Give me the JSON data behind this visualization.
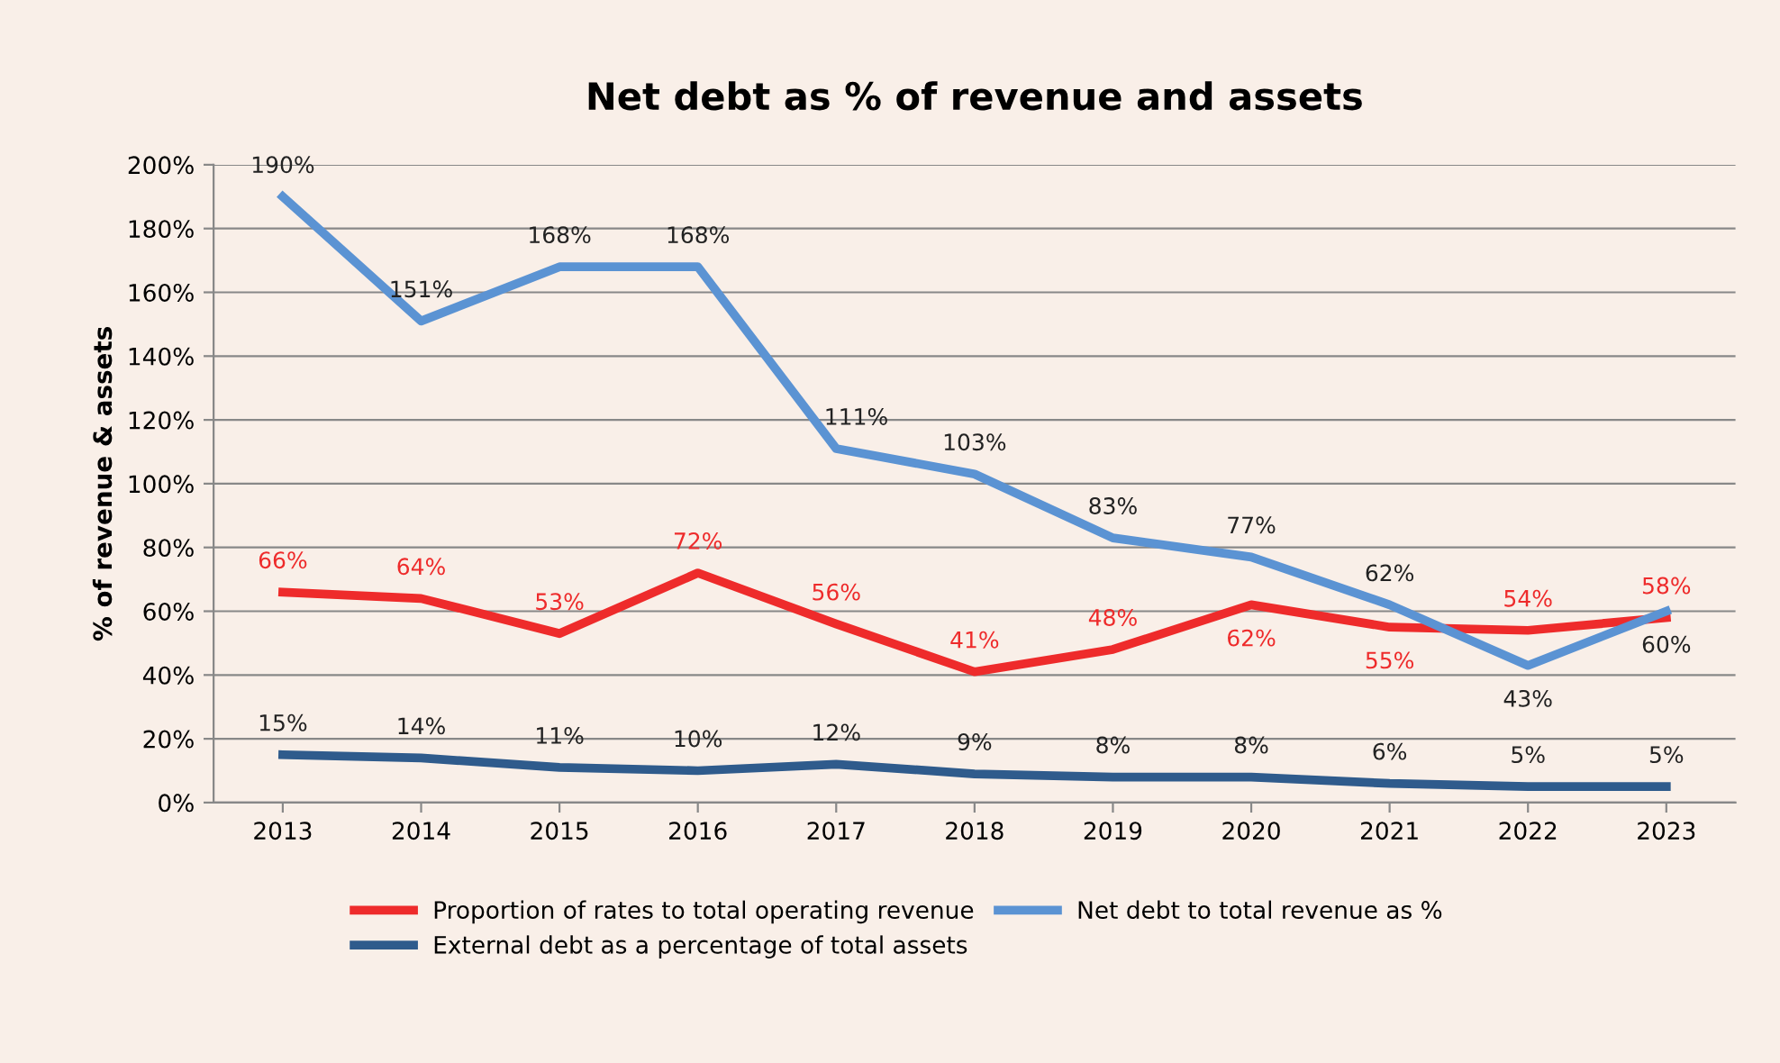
{
  "chart_data": {
    "type": "line",
    "title": "Net debt as % of revenue and assets",
    "ylabel": "% of revenue & assets",
    "categories": [
      "2013",
      "2014",
      "2015",
      "2016",
      "2017",
      "2018",
      "2019",
      "2020",
      "2021",
      "2022",
      "2023"
    ],
    "series": [
      {
        "name": "Proportion of rates to total operating revenue",
        "color": "#ee2b2b",
        "values": [
          66,
          64,
          53,
          72,
          56,
          41,
          48,
          62,
          55,
          54,
          58
        ],
        "value_labels": [
          "66%",
          "64%",
          "53%",
          "72%",
          "56%",
          "41%",
          "48%",
          "62%",
          "55%",
          "54%",
          "58%"
        ]
      },
      {
        "name": "External debt as a percentage of total assets",
        "color": "#2f5b8c",
        "values": [
          15,
          14,
          11,
          10,
          12,
          9,
          8,
          8,
          6,
          5,
          5
        ],
        "value_labels": [
          "15%",
          "14%",
          "11%",
          "10%",
          "12%",
          "9%",
          "8%",
          "8%",
          "6%",
          "5%",
          "5%"
        ]
      },
      {
        "name": "Net debt to total revenue as %",
        "color": "#5b93d3",
        "values": [
          190,
          151,
          168,
          168,
          111,
          103,
          83,
          77,
          62,
          43,
          60
        ],
        "value_labels": [
          "190%",
          "151%",
          "168%",
          "168%",
          "111%",
          "103%",
          "83%",
          "77%",
          "62%",
          "43%",
          "60%"
        ]
      }
    ],
    "ylim": [
      0,
      200
    ],
    "yticks": [
      {
        "value": 0,
        "label": "0%"
      },
      {
        "value": 20,
        "label": "20%"
      },
      {
        "value": 40,
        "label": "40%"
      },
      {
        "value": 60,
        "label": "60%"
      },
      {
        "value": 80,
        "label": "80%"
      },
      {
        "value": 100,
        "label": "100%"
      },
      {
        "value": 120,
        "label": "120%"
      },
      {
        "value": 140,
        "label": "140%"
      },
      {
        "value": 160,
        "label": "160%"
      },
      {
        "value": 180,
        "label": "180%"
      },
      {
        "value": 200,
        "label": "200%"
      }
    ],
    "grid": "y",
    "legend": "bottom",
    "marker": "none",
    "line_style": "solid"
  }
}
